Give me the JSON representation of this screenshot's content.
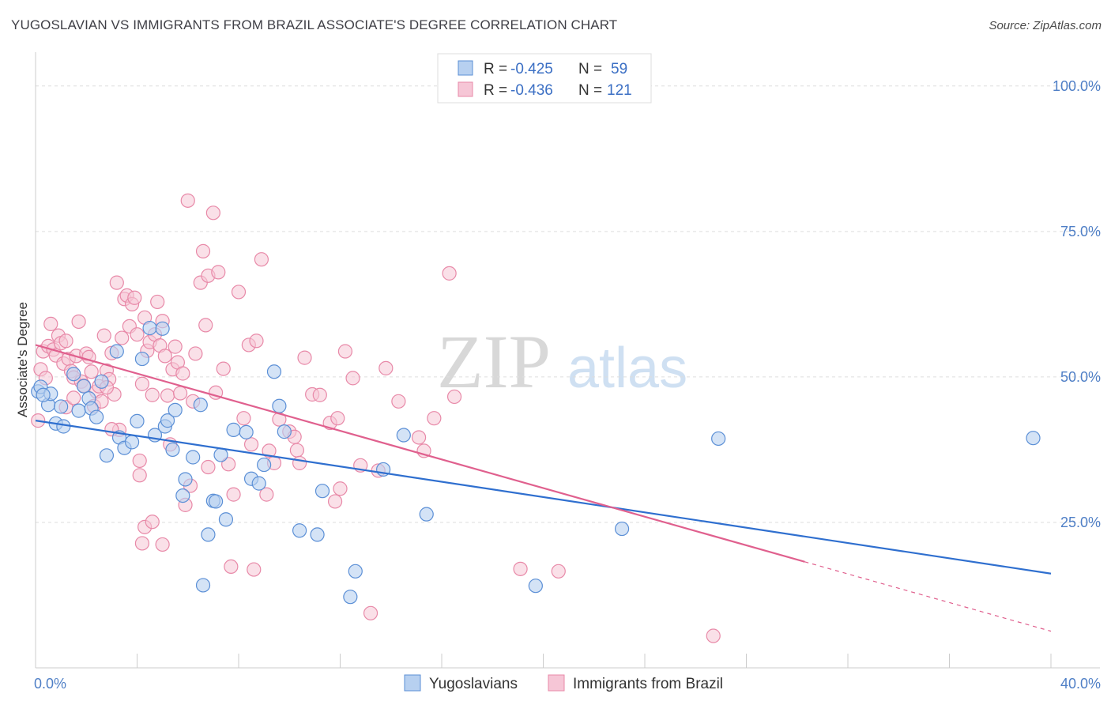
{
  "title": "YUGOSLAVIAN VS IMMIGRANTS FROM BRAZIL ASSOCIATE'S DEGREE CORRELATION CHART",
  "source": "Source: ZipAtlas.com",
  "watermark": {
    "zip": "ZIP",
    "atlas": "atlas"
  },
  "colors": {
    "blue": "#5b8fd6",
    "blue_fill": "#b7d0f0",
    "blue_line": "#2f6fcf",
    "pink": "#e889a8",
    "pink_fill": "#f6c6d6",
    "pink_line": "#e0608e",
    "tick_text": "#4f7fc6",
    "grid": "#dddddd"
  },
  "legend": {
    "rows": [
      {
        "r_label": "R =",
        "r_value": "-0.425",
        "n_label": "N =",
        "n_value": "59"
      },
      {
        "r_label": "R =",
        "r_value": "-0.436",
        "n_label": "N =",
        "n_value": "121"
      }
    ]
  },
  "chart_data": {
    "type": "scatter",
    "title": "YUGOSLAVIAN VS IMMIGRANTS FROM BRAZIL ASSOCIATE'S DEGREE CORRELATION CHART",
    "xlabel": "",
    "ylabel": "Associate's Degree",
    "xlim": [
      0,
      40
    ],
    "ylim": [
      0,
      105
    ],
    "x_tick_labels": [
      "0.0%",
      "40.0%"
    ],
    "y_ticks": [
      25,
      50,
      75,
      100
    ],
    "y_tick_labels": [
      "25.0%",
      "50.0%",
      "75.0%",
      "100.0%"
    ],
    "grid": true,
    "legend_position": "top-center",
    "series": [
      {
        "name": "Yugoslavians",
        "r": -0.425,
        "n": 59,
        "trend": {
          "x": [
            0,
            40
          ],
          "y": [
            42.5,
            16.2
          ],
          "dashed_from": null
        },
        "points": [
          [
            0.1,
            47.5
          ],
          [
            0.2,
            48.3
          ],
          [
            0.5,
            45.2
          ],
          [
            0.6,
            47.1
          ],
          [
            0.8,
            42.0
          ],
          [
            1.0,
            44.9
          ],
          [
            1.1,
            41.5
          ],
          [
            1.5,
            50.5
          ],
          [
            1.7,
            44.2
          ],
          [
            1.9,
            48.4
          ],
          [
            2.1,
            46.3
          ],
          [
            2.2,
            44.6
          ],
          [
            2.4,
            43.1
          ],
          [
            2.6,
            49.2
          ],
          [
            2.8,
            36.5
          ],
          [
            3.3,
            39.6
          ],
          [
            3.5,
            37.8
          ],
          [
            3.8,
            38.8
          ],
          [
            4.0,
            42.4
          ],
          [
            4.2,
            53.1
          ],
          [
            4.5,
            58.4
          ],
          [
            4.7,
            40.0
          ],
          [
            5.0,
            58.3
          ],
          [
            5.1,
            41.5
          ],
          [
            5.2,
            42.5
          ],
          [
            5.4,
            37.5
          ],
          [
            5.5,
            44.3
          ],
          [
            5.8,
            29.6
          ],
          [
            5.9,
            32.4
          ],
          [
            6.2,
            36.2
          ],
          [
            6.5,
            45.2
          ],
          [
            6.6,
            14.2
          ],
          [
            6.8,
            22.9
          ],
          [
            7.0,
            28.7
          ],
          [
            7.1,
            28.6
          ],
          [
            7.3,
            36.6
          ],
          [
            7.5,
            25.5
          ],
          [
            7.8,
            40.9
          ],
          [
            8.3,
            40.5
          ],
          [
            8.5,
            32.5
          ],
          [
            8.8,
            31.7
          ],
          [
            9.0,
            34.9
          ],
          [
            9.4,
            50.9
          ],
          [
            9.6,
            45.0
          ],
          [
            9.8,
            40.6
          ],
          [
            10.4,
            23.6
          ],
          [
            11.1,
            22.9
          ],
          [
            11.3,
            30.4
          ],
          [
            12.4,
            12.2
          ],
          [
            12.6,
            16.6
          ],
          [
            13.7,
            34.1
          ],
          [
            14.5,
            40.0
          ],
          [
            15.4,
            26.4
          ],
          [
            19.7,
            14.1
          ],
          [
            23.1,
            23.9
          ],
          [
            26.9,
            39.4
          ],
          [
            39.3,
            39.5
          ],
          [
            3.2,
            54.4
          ],
          [
            0.3,
            46.9
          ]
        ]
      },
      {
        "name": "Immigrants from Brazil",
        "r": -0.436,
        "n": 121,
        "trend": {
          "x": [
            0,
            40
          ],
          "y": [
            55.5,
            6.3
          ],
          "dashed_from": 30.3
        },
        "points": [
          [
            0.1,
            42.5
          ],
          [
            0.2,
            51.3
          ],
          [
            0.3,
            54.4
          ],
          [
            0.5,
            55.3
          ],
          [
            0.6,
            59.1
          ],
          [
            0.7,
            54.7
          ],
          [
            0.8,
            53.7
          ],
          [
            0.9,
            57.1
          ],
          [
            1.0,
            55.8
          ],
          [
            1.1,
            52.3
          ],
          [
            1.2,
            56.2
          ],
          [
            1.3,
            53.1
          ],
          [
            1.4,
            51.0
          ],
          [
            1.5,
            49.9
          ],
          [
            1.6,
            53.6
          ],
          [
            1.7,
            59.5
          ],
          [
            1.8,
            49.2
          ],
          [
            1.9,
            48.5
          ],
          [
            2.0,
            54.0
          ],
          [
            2.1,
            53.4
          ],
          [
            2.2,
            50.9
          ],
          [
            2.3,
            45.0
          ],
          [
            2.4,
            47.5
          ],
          [
            2.5,
            48.4
          ],
          [
            2.6,
            45.8
          ],
          [
            2.7,
            57.1
          ],
          [
            2.8,
            51.1
          ],
          [
            2.9,
            49.6
          ],
          [
            3.0,
            54.1
          ],
          [
            3.1,
            47.0
          ],
          [
            3.2,
            66.2
          ],
          [
            3.3,
            40.9
          ],
          [
            3.4,
            56.7
          ],
          [
            3.5,
            63.4
          ],
          [
            3.6,
            64.0
          ],
          [
            3.7,
            58.7
          ],
          [
            3.8,
            62.5
          ],
          [
            3.9,
            63.6
          ],
          [
            4.0,
            57.3
          ],
          [
            4.1,
            35.6
          ],
          [
            4.2,
            48.8
          ],
          [
            4.3,
            60.2
          ],
          [
            4.4,
            54.5
          ],
          [
            4.5,
            56.0
          ],
          [
            4.6,
            46.9
          ],
          [
            4.7,
            57.3
          ],
          [
            4.8,
            62.9
          ],
          [
            4.9,
            55.4
          ],
          [
            5.0,
            59.6
          ],
          [
            5.1,
            53.6
          ],
          [
            5.2,
            46.8
          ],
          [
            5.3,
            38.4
          ],
          [
            5.4,
            51.3
          ],
          [
            5.5,
            55.2
          ],
          [
            5.6,
            52.5
          ],
          [
            5.7,
            47.2
          ],
          [
            5.8,
            50.6
          ],
          [
            5.9,
            28.0
          ],
          [
            6.0,
            80.3
          ],
          [
            6.2,
            45.8
          ],
          [
            6.3,
            54.0
          ],
          [
            6.5,
            66.2
          ],
          [
            6.6,
            71.6
          ],
          [
            6.7,
            58.9
          ],
          [
            6.8,
            67.4
          ],
          [
            7.0,
            78.2
          ],
          [
            7.1,
            47.3
          ],
          [
            7.2,
            68.0
          ],
          [
            7.4,
            51.4
          ],
          [
            7.6,
            35.0
          ],
          [
            7.8,
            29.8
          ],
          [
            8.0,
            64.6
          ],
          [
            8.2,
            42.9
          ],
          [
            8.4,
            55.5
          ],
          [
            8.5,
            38.4
          ],
          [
            8.7,
            56.2
          ],
          [
            8.9,
            70.2
          ],
          [
            9.1,
            29.8
          ],
          [
            9.2,
            37.3
          ],
          [
            9.4,
            35.2
          ],
          [
            9.6,
            42.7
          ],
          [
            10.0,
            40.6
          ],
          [
            10.3,
            37.4
          ],
          [
            10.4,
            35.2
          ],
          [
            10.6,
            53.3
          ],
          [
            10.9,
            47.0
          ],
          [
            11.2,
            46.9
          ],
          [
            11.6,
            42.1
          ],
          [
            11.9,
            42.9
          ],
          [
            12.0,
            30.8
          ],
          [
            12.2,
            54.4
          ],
          [
            12.5,
            49.8
          ],
          [
            12.8,
            34.8
          ],
          [
            13.2,
            9.4
          ],
          [
            13.8,
            51.5
          ],
          [
            14.3,
            45.8
          ],
          [
            15.3,
            37.3
          ],
          [
            15.7,
            42.9
          ],
          [
            16.3,
            67.8
          ],
          [
            16.5,
            46.6
          ],
          [
            19.1,
            17.0
          ],
          [
            20.6,
            16.6
          ],
          [
            26.7,
            5.5
          ],
          [
            2.8,
            48.2
          ],
          [
            3.0,
            41.0
          ],
          [
            4.1,
            33.1
          ],
          [
            4.2,
            21.4
          ],
          [
            4.3,
            24.2
          ],
          [
            4.6,
            25.1
          ],
          [
            5.0,
            21.2
          ],
          [
            6.1,
            31.3
          ],
          [
            6.8,
            34.5
          ],
          [
            7.7,
            17.4
          ],
          [
            8.6,
            16.9
          ],
          [
            10.2,
            39.7
          ],
          [
            11.8,
            28.6
          ],
          [
            13.5,
            33.9
          ],
          [
            15.1,
            39.6
          ],
          [
            1.2,
            44.8
          ],
          [
            0.4,
            49.8
          ],
          [
            1.5,
            46.4
          ]
        ]
      }
    ]
  },
  "bottom_legend": [
    "Yugoslavians",
    "Immigrants from Brazil"
  ]
}
